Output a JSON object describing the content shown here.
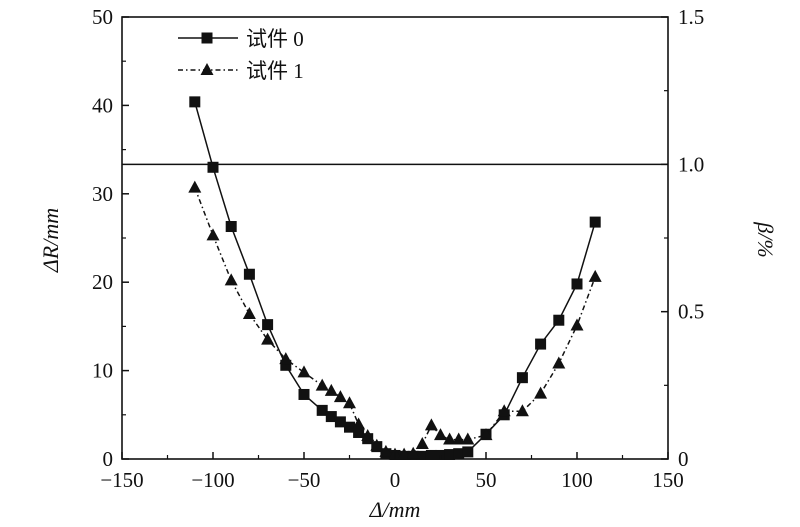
{
  "chart_data": {
    "type": "line",
    "xlabel": "Δ/mm",
    "ylabel": "ΔR/mm",
    "y2label": "β/%",
    "xlim": [
      -150,
      150
    ],
    "ylim": [
      0,
      50
    ],
    "y2lim": [
      0,
      1.5
    ],
    "xticks": [
      "−150",
      "−100",
      "−50",
      "0",
      "50",
      "100",
      "150"
    ],
    "yticks": [
      "0",
      "10",
      "20",
      "30",
      "40",
      "50"
    ],
    "y2ticks": [
      "0",
      "0.5",
      "1.0",
      "1.5"
    ],
    "reference_line": {
      "axis": "y2",
      "value": 1.0
    },
    "legend_position": "top-left",
    "grid": false,
    "series": [
      {
        "name": "试件 0",
        "marker": "square",
        "line": "solid",
        "x": [
          -110,
          -100,
          -90,
          -80,
          -70,
          -60,
          -50,
          -40,
          -35,
          -30,
          -25,
          -20,
          -15,
          -10,
          -5,
          0,
          5,
          10,
          15,
          20,
          25,
          30,
          35,
          40,
          50,
          60,
          70,
          80,
          90,
          100,
          110
        ],
        "y": [
          40.4,
          33.0,
          26.3,
          20.9,
          15.2,
          10.6,
          7.3,
          5.5,
          4.8,
          4.2,
          3.6,
          3.0,
          2.3,
          1.4,
          0.6,
          0.4,
          0.3,
          0.3,
          0.3,
          0.4,
          0.4,
          0.5,
          0.6,
          0.8,
          2.8,
          5.0,
          9.2,
          13.0,
          15.7,
          19.8,
          26.8
        ]
      },
      {
        "name": "试件 1",
        "marker": "triangle",
        "line": "dash-dot",
        "x": [
          -110,
          -100,
          -90,
          -80,
          -70,
          -60,
          -50,
          -40,
          -35,
          -30,
          -25,
          -20,
          -15,
          -10,
          -5,
          0,
          5,
          10,
          15,
          20,
          25,
          30,
          35,
          40,
          50,
          60,
          70,
          80,
          90,
          100,
          110
        ],
        "y": [
          30.7,
          25.3,
          20.2,
          16.4,
          13.5,
          11.3,
          9.8,
          8.3,
          7.7,
          7.0,
          6.3,
          3.9,
          2.6,
          1.5,
          0.8,
          0.5,
          0.5,
          0.6,
          1.7,
          3.8,
          2.7,
          2.2,
          2.2,
          2.2,
          2.7,
          5.4,
          5.4,
          7.4,
          10.8,
          15.1,
          20.6
        ]
      }
    ]
  }
}
